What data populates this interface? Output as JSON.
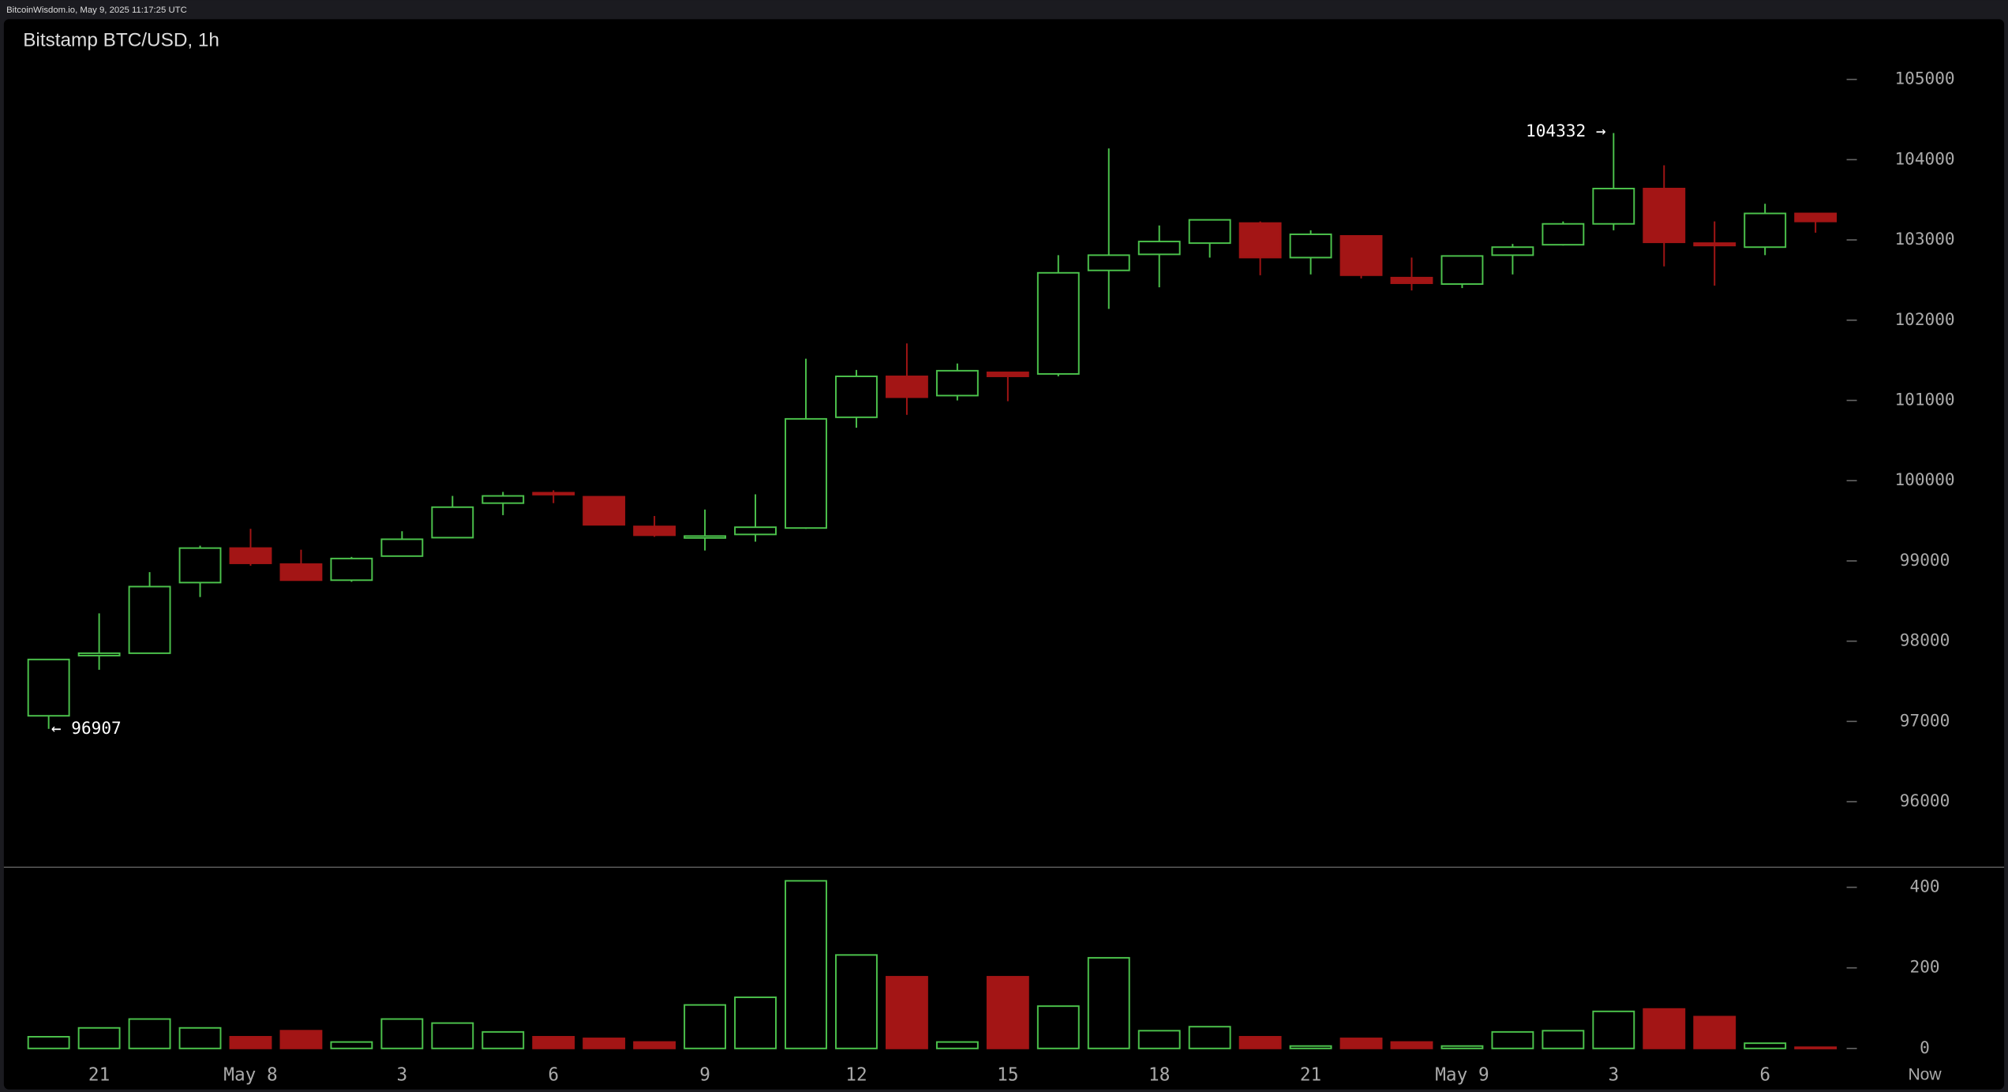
{
  "header": "BitcoinWisdom.io, May 9, 2025 11:17:25 UTC",
  "chart_data": {
    "type": "candlestick",
    "title": "Bitstamp BTC/USD, 1h",
    "categories": [
      null,
      "21",
      null,
      null,
      "May 8",
      null,
      null,
      "3",
      null,
      null,
      "6",
      null,
      null,
      "9",
      null,
      null,
      "12",
      null,
      null,
      "15",
      null,
      null,
      "18",
      null,
      null,
      "21",
      null,
      null,
      "May 9",
      null,
      null,
      "3",
      null,
      null,
      "6",
      null
    ],
    "now_label": "Now",
    "open": [
      97070,
      97820,
      97850,
      98730,
      99160,
      98960,
      98760,
      99060,
      99290,
      99720,
      99850,
      99800,
      99430,
      99300,
      99330,
      99410,
      100790,
      101300,
      101060,
      101350,
      101330,
      102620,
      102820,
      102960,
      103210,
      102780,
      103050,
      102530,
      102450,
      102810,
      102940,
      103200,
      103640,
      102960,
      102910,
      103330
    ],
    "high": [
      97780,
      98346,
      98860,
      99190,
      99400,
      99140,
      99050,
      99370,
      99810,
      99860,
      99880,
      99800,
      99560,
      99640,
      99830,
      101520,
      101380,
      101710,
      101460,
      101350,
      102810,
      104140,
      103180,
      103250,
      103230,
      103120,
      103050,
      102780,
      102800,
      102950,
      103230,
      104332,
      103930,
      103230,
      103450,
      103330
    ],
    "low": [
      96907,
      97644,
      97850,
      98550,
      98940,
      98760,
      98740,
      99060,
      99290,
      99570,
      99720,
      99450,
      99300,
      99130,
      99240,
      99400,
      100660,
      100820,
      101000,
      100990,
      101300,
      102140,
      102410,
      102780,
      102560,
      102570,
      102520,
      102370,
      102400,
      102570,
      102930,
      103120,
      102670,
      102430,
      102810,
      103090
    ],
    "close": [
      97772,
      97850,
      98680,
      99160,
      98970,
      98760,
      99030,
      99270,
      99670,
      99810,
      99830,
      99450,
      99320,
      99310,
      99420,
      100770,
      101300,
      101040,
      101370,
      101300,
      102590,
      102810,
      102980,
      103250,
      102780,
      103070,
      102560,
      102460,
      102800,
      102910,
      103200,
      103640,
      102970,
      102930,
      103330,
      103230
    ],
    "volume": [
      29,
      51,
      73,
      51,
      29,
      44,
      16,
      73,
      63,
      41,
      29,
      25,
      16,
      108,
      127,
      416,
      232,
      178,
      16,
      178,
      105,
      225,
      44,
      54,
      29,
      6,
      25,
      16,
      6,
      41,
      44,
      92,
      98,
      79,
      13,
      3
    ],
    "up_color": "#4cc34c",
    "down_color": "#a31515",
    "ylim": [
      95190,
      105750
    ],
    "yticks": [
      96000,
      97000,
      98000,
      99000,
      100000,
      101000,
      102000,
      103000,
      104000,
      105000
    ],
    "volume_ylim": [
      -35,
      448
    ],
    "volume_yticks": [
      0,
      200,
      400
    ],
    "annotations": [
      {
        "text": "104332 →",
        "index": 31,
        "at": "high"
      },
      {
        "text": "← 96907",
        "index": 0,
        "at": "low"
      }
    ]
  }
}
